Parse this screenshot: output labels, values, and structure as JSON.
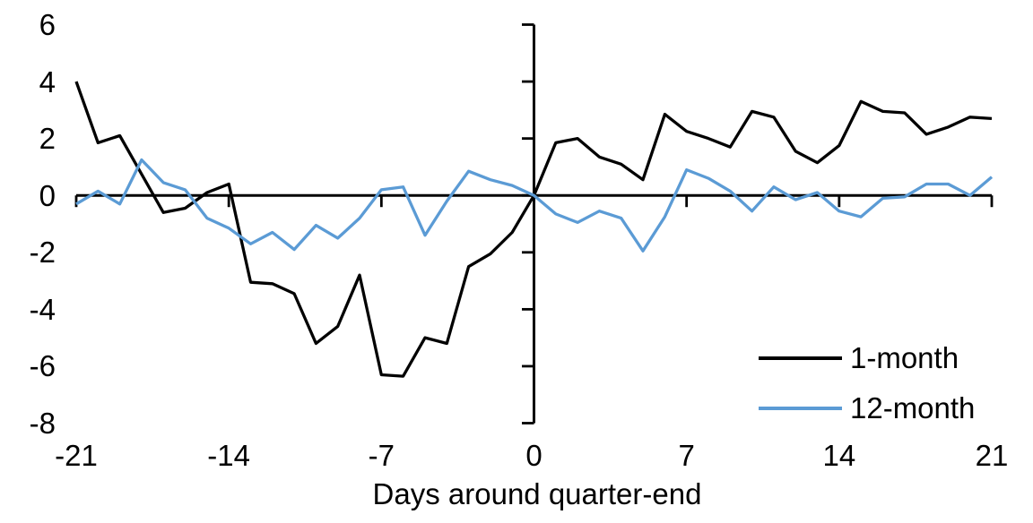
{
  "chart_data": {
    "type": "line",
    "title": "",
    "xlabel": "Days around quarter-end",
    "ylabel": "",
    "xlim": [
      -21,
      21
    ],
    "ylim": [
      -8,
      6
    ],
    "x_ticks": [
      -21,
      -14,
      -7,
      0,
      7,
      14,
      21
    ],
    "y_ticks": [
      6,
      4,
      2,
      0,
      -2,
      -4,
      -6,
      -8
    ],
    "grid": false,
    "legend_position": "bottom-right",
    "x": [
      -21,
      -20,
      -19,
      -18,
      -17,
      -16,
      -15,
      -14,
      -13,
      -12,
      -11,
      -10,
      -9,
      -8,
      -7,
      -6,
      -5,
      -4,
      -3,
      -2,
      -1,
      0,
      1,
      2,
      3,
      4,
      5,
      6,
      7,
      8,
      9,
      10,
      11,
      12,
      13,
      14,
      15,
      16,
      17,
      18,
      19,
      20,
      21
    ],
    "series": [
      {
        "name": "1-month",
        "color": "#000000",
        "values": [
          4.0,
          1.85,
          2.1,
          0.75,
          -0.6,
          -0.45,
          0.1,
          0.4,
          -3.05,
          -3.1,
          -3.45,
          -5.2,
          -4.6,
          -2.8,
          -6.3,
          -6.35,
          -5.0,
          -5.2,
          -2.5,
          -2.05,
          -1.3,
          0.0,
          1.85,
          2.0,
          1.35,
          1.1,
          0.55,
          2.85,
          2.25,
          2.0,
          1.7,
          2.95,
          2.75,
          1.55,
          1.15,
          1.75,
          3.3,
          2.95,
          2.9,
          2.15,
          2.4,
          2.75,
          2.7
        ]
      },
      {
        "name": "12-month",
        "color": "#5B9BD5",
        "values": [
          -0.3,
          0.15,
          -0.3,
          1.25,
          0.45,
          0.2,
          -0.8,
          -1.15,
          -1.7,
          -1.3,
          -1.9,
          -1.05,
          -1.5,
          -0.8,
          0.2,
          0.3,
          -1.4,
          -0.2,
          0.85,
          0.55,
          0.35,
          0.0,
          -0.65,
          -0.95,
          -0.55,
          -0.8,
          -1.95,
          -0.75,
          0.9,
          0.6,
          0.15,
          -0.55,
          0.3,
          -0.15,
          0.1,
          -0.55,
          -0.75,
          -0.1,
          -0.05,
          0.4,
          0.4,
          0.0,
          0.65
        ]
      }
    ]
  },
  "colors": {
    "background": "#ffffff",
    "axis": "#000000"
  }
}
